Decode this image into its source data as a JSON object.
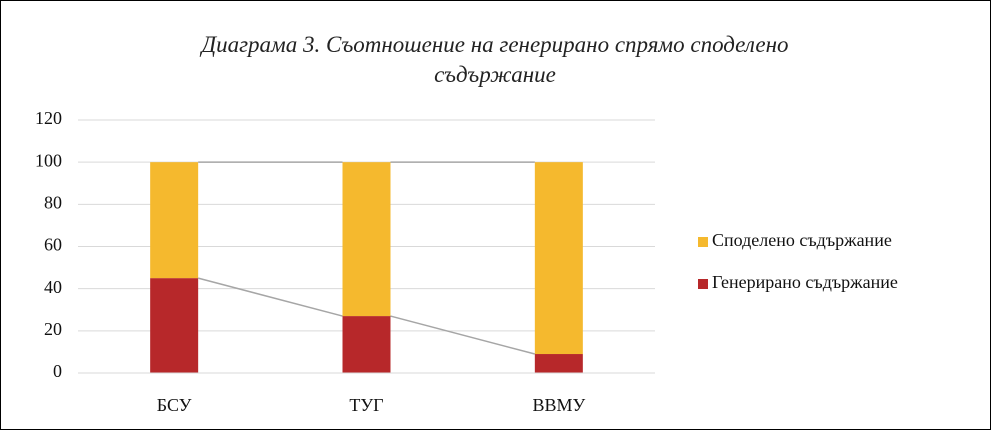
{
  "chart_data": {
    "type": "bar",
    "stacked": true,
    "title": "Диаграма  3. Съотношение на генерирано спрямо споделено съдържание",
    "categories": [
      "БСУ",
      "ТУГ",
      "ВВМУ"
    ],
    "series": [
      {
        "name": "Генерирано съдържание",
        "color": "#b7282a",
        "values": [
          45,
          27,
          9
        ]
      },
      {
        "name": "Споделено съдържание",
        "color": "#f5b92e",
        "values": [
          55,
          73,
          91
        ]
      }
    ],
    "ylim": [
      0,
      120
    ],
    "yticks": [
      0,
      20,
      40,
      60,
      80,
      100,
      120
    ],
    "grid": true,
    "series_lines": true,
    "legend": "right"
  }
}
